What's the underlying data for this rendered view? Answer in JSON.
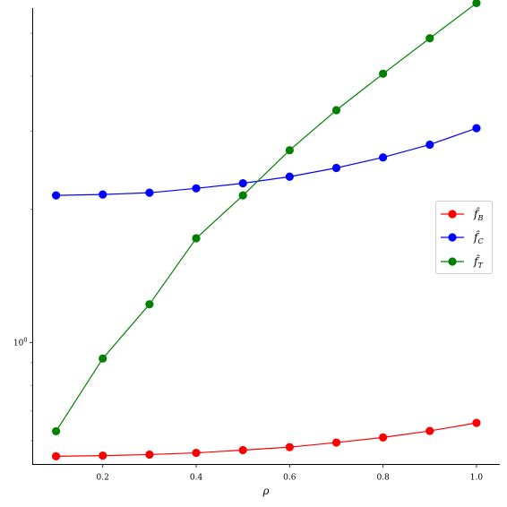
{
  "chart_data": {
    "type": "line",
    "xlabel": "ρ",
    "ylabel": "",
    "title": "",
    "x": [
      0.1,
      0.2,
      0.3,
      0.4,
      0.5,
      0.6,
      0.7,
      0.8,
      0.9,
      1.0
    ],
    "xlim": [
      0.05,
      1.05
    ],
    "x_ticks": [
      "0.2",
      "0.4",
      "0.6",
      "0.8",
      "1.0"
    ],
    "x_tick_values": [
      0.2,
      0.4,
      0.6,
      0.8,
      1.0
    ],
    "y_scale": "log",
    "ylim": [
      0.53,
      5.7
    ],
    "y_ticks": [
      {
        "value": 1.0,
        "label": "10⁰",
        "base": "10",
        "exp": "0"
      }
    ],
    "y_minor_ticks": [
      0.6,
      0.7,
      0.8,
      0.9,
      2,
      3,
      4,
      5
    ],
    "grid": false,
    "legend_placement": "center-right",
    "series": [
      {
        "name": "f̂_B",
        "legend_main": "f̂",
        "legend_sub": "B",
        "color": "#ff0000",
        "values": [
          0.553,
          0.555,
          0.558,
          0.563,
          0.571,
          0.58,
          0.594,
          0.61,
          0.631,
          0.658
        ]
      },
      {
        "name": "f̂_C",
        "legend_main": "f̂",
        "legend_sub": "C",
        "color": "#0000ff",
        "values": [
          2.15,
          2.16,
          2.18,
          2.23,
          2.29,
          2.37,
          2.48,
          2.62,
          2.8,
          3.05
        ]
      },
      {
        "name": "f̂_T",
        "legend_main": "f̂",
        "legend_sub": "T",
        "color": "#008000",
        "values": [
          0.63,
          0.92,
          1.22,
          1.72,
          2.15,
          2.72,
          3.35,
          4.05,
          4.87,
          5.85
        ]
      }
    ]
  }
}
